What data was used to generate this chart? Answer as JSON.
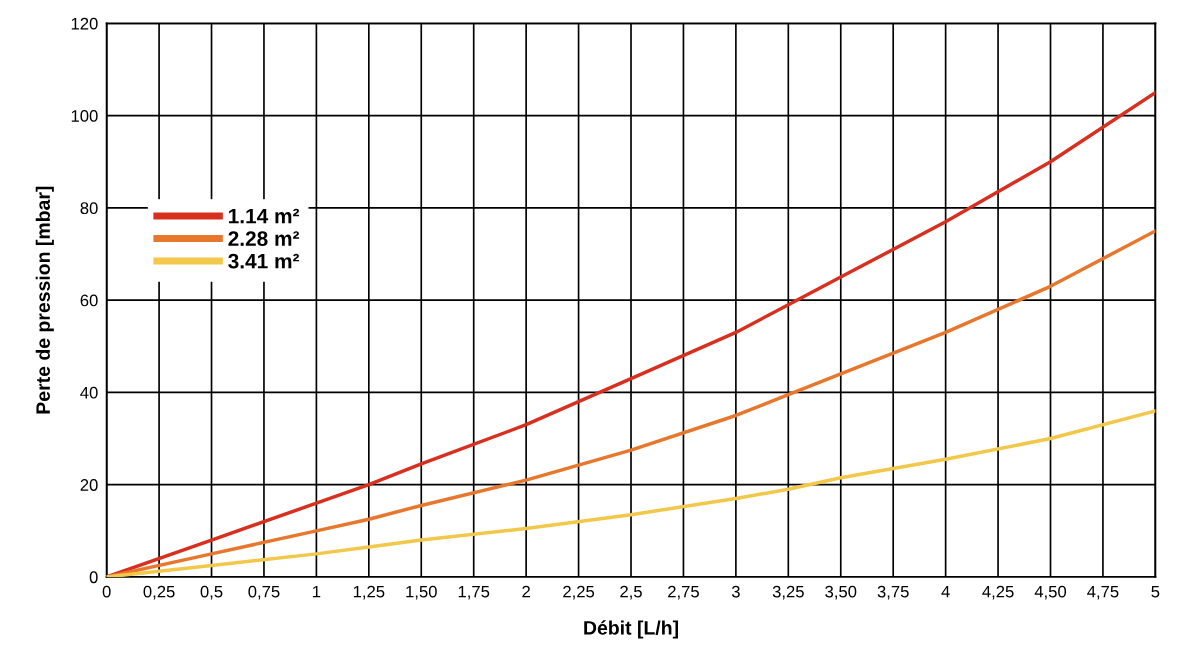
{
  "chart_data": {
    "type": "line",
    "xlabel": "Débit [L/h]",
    "ylabel": "Perte de pression [mbar]",
    "x": [
      0,
      0.5,
      1,
      1.25,
      1.5,
      2,
      2.5,
      3,
      3.25,
      3.5,
      4,
      4.5,
      5
    ],
    "series": [
      {
        "name": "1.14 m²",
        "color": "#d8301f",
        "values": [
          0,
          8,
          16,
          20,
          24.5,
          33,
          43,
          53,
          59,
          65,
          77,
          90,
          105
        ]
      },
      {
        "name": "2.28 m²",
        "color": "#e8772e",
        "values": [
          0,
          5,
          10,
          12.5,
          15.5,
          21,
          27.5,
          35,
          39.5,
          44,
          53,
          63,
          75
        ]
      },
      {
        "name": "3.41 m²",
        "color": "#f2c84a",
        "values": [
          0,
          2.5,
          5,
          6.5,
          8,
          10.5,
          13.5,
          17,
          19,
          21.5,
          25.5,
          30,
          36
        ]
      }
    ],
    "xlim": [
      0,
      5
    ],
    "ylim": [
      0,
      120
    ],
    "xticks": [
      0,
      {
        "value": 0.25,
        "label": "0,25"
      },
      {
        "value": 0.5,
        "label": "0,5"
      },
      {
        "value": 0.75,
        "label": "0,75"
      },
      1,
      {
        "value": 1.25,
        "label": "1,25"
      },
      {
        "value": 1.5,
        "label": "1,50"
      },
      {
        "value": 1.75,
        "label": "1,75"
      },
      2,
      {
        "value": 2.25,
        "label": "2,25"
      },
      {
        "value": 2.5,
        "label": "2,5"
      },
      {
        "value": 2.75,
        "label": "2,75"
      },
      3,
      {
        "value": 3.25,
        "label": "3,25"
      },
      {
        "value": 3.5,
        "label": "3,50"
      },
      {
        "value": 3.75,
        "label": "3,75"
      },
      4,
      {
        "value": 4.25,
        "label": "4,25"
      },
      {
        "value": 4.5,
        "label": "4,50"
      },
      {
        "value": 4.75,
        "label": "4,75"
      },
      5
    ],
    "yticks": [
      0,
      20,
      40,
      60,
      80,
      100,
      120
    ],
    "grid": true,
    "legend": "upper left",
    "marker": "none",
    "line_style": "solid"
  }
}
